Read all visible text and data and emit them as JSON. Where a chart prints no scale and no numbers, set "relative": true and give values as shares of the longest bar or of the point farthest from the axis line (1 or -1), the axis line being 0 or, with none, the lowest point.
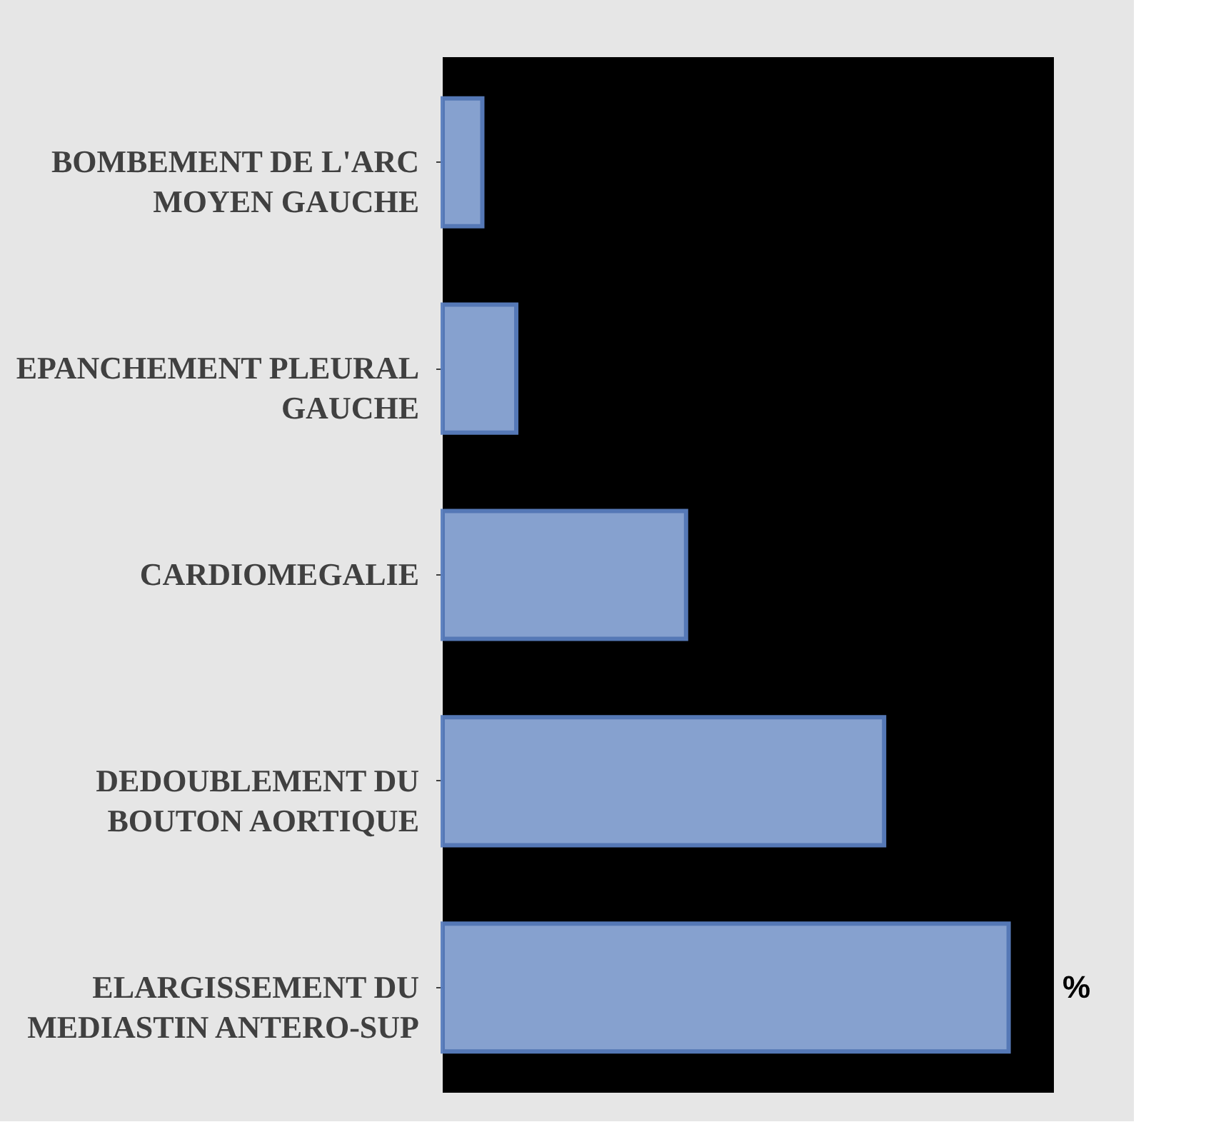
{
  "chart_data": {
    "type": "bar",
    "orientation": "horizontal",
    "relative": true,
    "categories": [
      "BOMBEMENT DE L'ARC MOYEN GAUCHE",
      "EPANCHEMENT PLEURAL GAUCHE",
      "CARDIOMEGALIE",
      "DEDOUBLEMENT DU BOUTON AORTIQUE",
      "ELARGISSEMENT DU MEDIASTIN ANTERO-SUP"
    ],
    "values": [
      0.07,
      0.13,
      0.43,
      0.78,
      1
    ],
    "color": "#8eaadb",
    "annotations": [
      "%"
    ]
  }
}
